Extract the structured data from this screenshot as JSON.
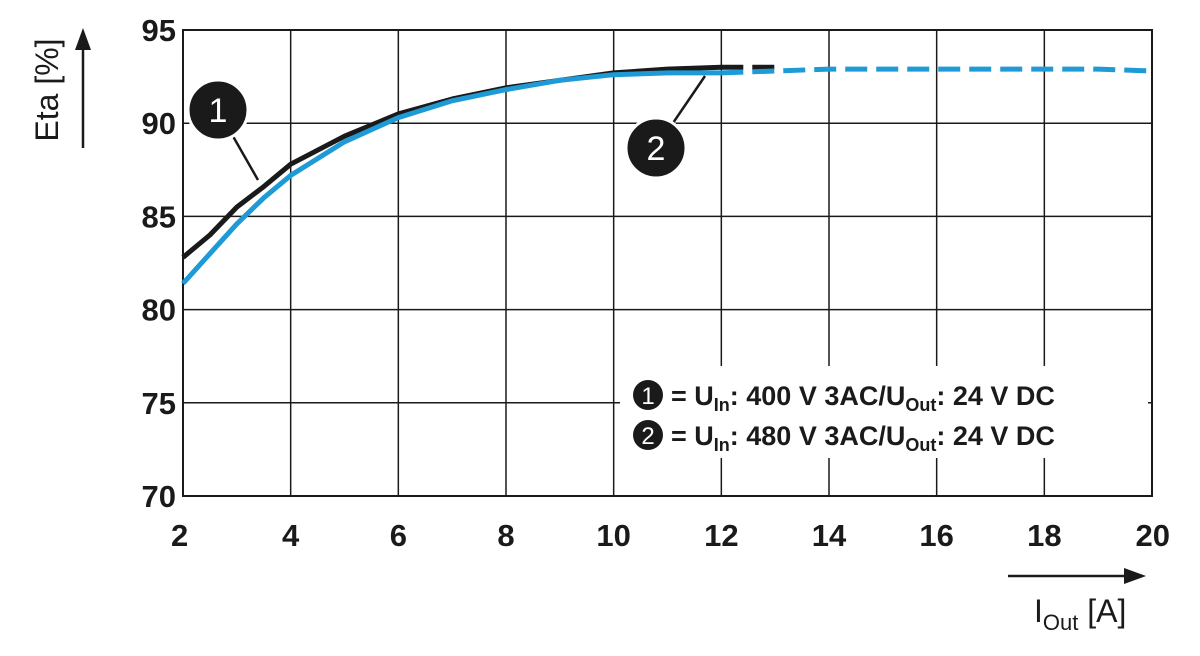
{
  "chart_data": {
    "type": "line",
    "y_label": "Eta [%]",
    "x_label_parts": [
      "I",
      "Out",
      " [A]"
    ],
    "x": [
      2,
      2.5,
      3,
      3.5,
      4,
      5,
      6,
      7,
      8,
      9,
      10,
      11,
      12,
      13,
      14,
      15,
      16,
      17,
      18,
      19,
      20
    ],
    "series": [
      {
        "marker": "1",
        "color": "#1a1a1a",
        "label_parts": [
          "= U",
          "In",
          ": 400 V 3AC/U",
          "Out",
          ": 24 V DC"
        ],
        "values": [
          82.8,
          84.0,
          85.5,
          86.6,
          87.8,
          89.3,
          90.5,
          91.3,
          91.9,
          92.3,
          92.7,
          92.9,
          93.0,
          93.0,
          null,
          null,
          null,
          null,
          null,
          null,
          null
        ]
      },
      {
        "marker": "2",
        "color": "#1e9ad6",
        "label_parts": [
          "= U",
          "In",
          ": 480 V 3AC/U",
          "Out",
          ": 24 V DC"
        ],
        "values": [
          81.4,
          83.0,
          84.6,
          86.0,
          87.2,
          89.0,
          90.3,
          91.2,
          91.8,
          92.3,
          92.6,
          92.7,
          92.7,
          92.8,
          92.9,
          92.9,
          92.9,
          92.9,
          92.9,
          92.9,
          92.8
        ]
      }
    ],
    "dashed_after": 12,
    "xlim": [
      2,
      20
    ],
    "xticks": [
      2,
      4,
      6,
      8,
      10,
      12,
      14,
      16,
      18,
      20
    ],
    "ylim": [
      70,
      95
    ],
    "yticks": [
      70,
      75,
      80,
      85,
      90,
      95
    ],
    "grid": true
  }
}
